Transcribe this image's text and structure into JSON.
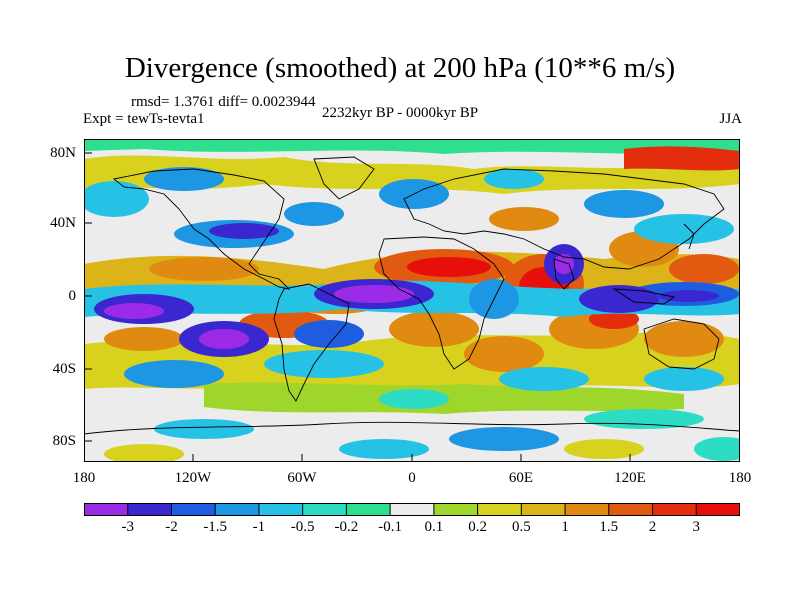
{
  "figure": {
    "title": "Divergence (smoothed) at 200 hPa (10**6 m/s)",
    "rmsd_text": "rmsd= 1.3761 diff= 0.0023944",
    "experiment_text": "Expt = tewTs-tevta1",
    "period_text": "2232kyr BP - 0000kyr BP",
    "season_text": "JJA"
  },
  "axes": {
    "y_ticks": [
      "80N",
      "40N",
      "0",
      "40S",
      "80S"
    ],
    "x_ticks": [
      "180",
      "120W",
      "60W",
      "0",
      "60E",
      "120E",
      "180"
    ]
  },
  "colorbar": {
    "labels": [
      "-3",
      "-2",
      "-1.5",
      "-1",
      "-0.5",
      "-0.2",
      "-0.1",
      "0.1",
      "0.2",
      "0.5",
      "1",
      "1.5",
      "2",
      "3"
    ],
    "colors": [
      "#9b2be6",
      "#3b27cf",
      "#1e5de0",
      "#1d96e4",
      "#25c2e6",
      "#2ddcc5",
      "#2ee08e",
      "#ececec",
      "#9fd62c",
      "#d8d21f",
      "#dcb41a",
      "#e08a12",
      "#e15a10",
      "#e32d0c",
      "#e60f0a"
    ]
  }
}
